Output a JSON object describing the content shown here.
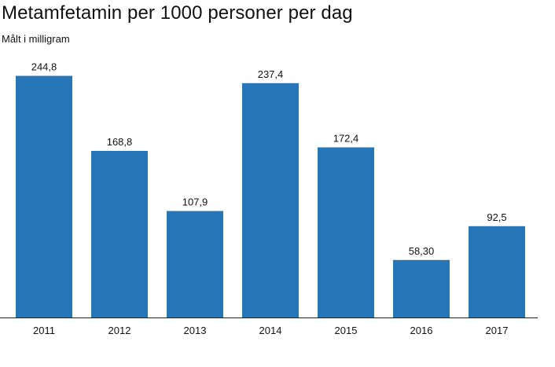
{
  "chart_data": {
    "type": "bar",
    "title": "Metamfetamin per 1000 personer per dag",
    "subtitle": "Målt i milligram",
    "categories": [
      "2011",
      "2012",
      "2013",
      "2014",
      "2015",
      "2016",
      "2017"
    ],
    "values": [
      244.8,
      168.8,
      107.9,
      237.4,
      172.4,
      58.3,
      92.5
    ],
    "value_labels": [
      "244,8",
      "168,8",
      "107,9",
      "237,4",
      "172,4",
      "58,30",
      "92,5"
    ],
    "xlabel": "",
    "ylabel": "",
    "ylim": [
      0,
      250
    ],
    "grid": false,
    "legend": "none",
    "bar_color": "#2776b8",
    "axis_color": "#222222"
  }
}
